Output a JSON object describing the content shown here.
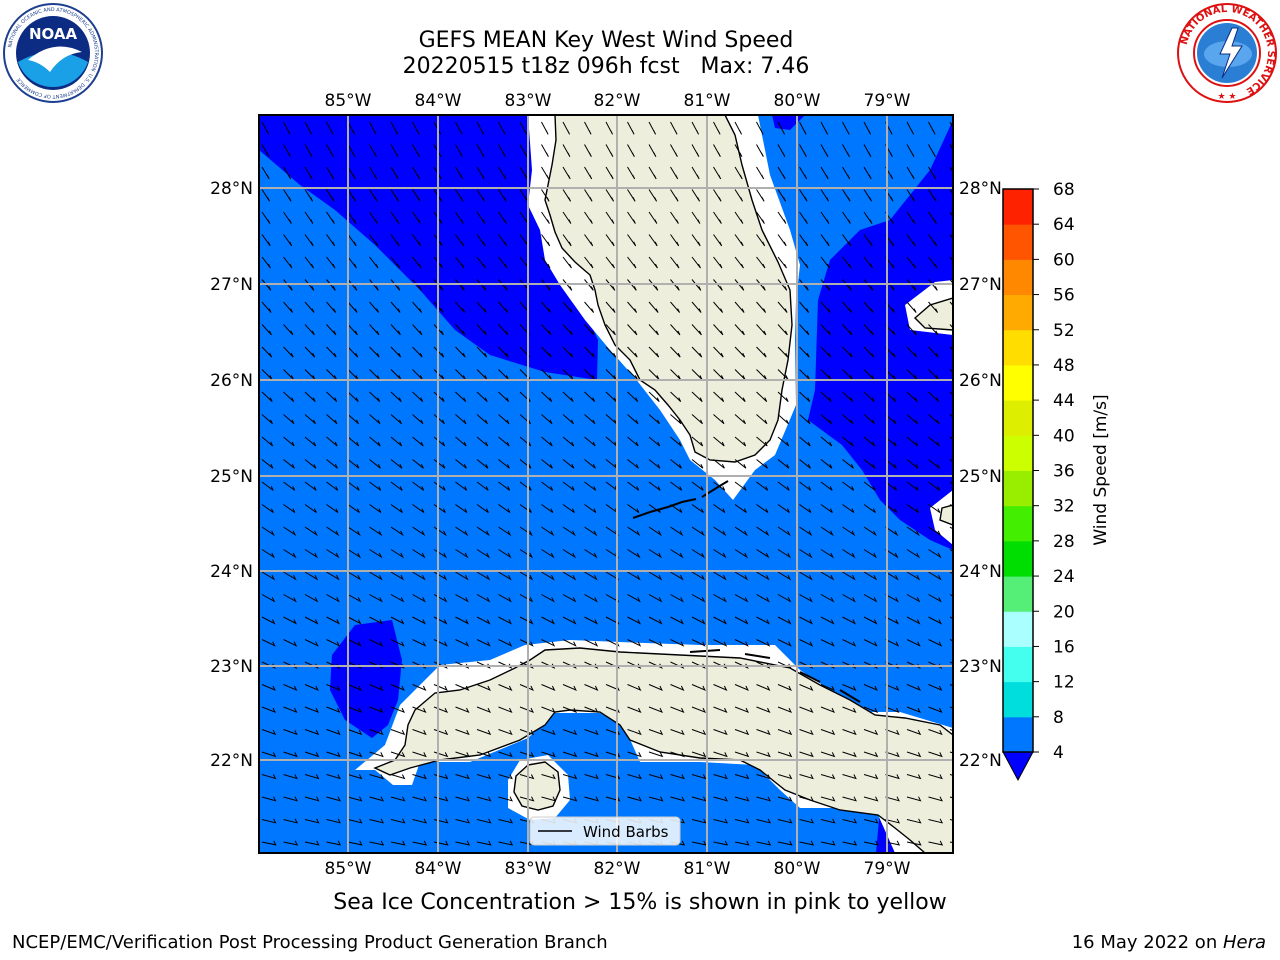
{
  "header": {
    "title_line1": "GEFS MEAN Key West Wind Speed",
    "title_line2": "20220515 t18z 096h fcst   Max: 7.46"
  },
  "logos": {
    "left": "NOAA",
    "left_ring_text": "NATIONAL OCEANIC AND ATMOSPHERIC ADMINISTRATION",
    "left_ring_bottom": "U.S. DEPARTMENT OF COMMERCE",
    "right_ring_text": "NATIONAL WEATHER SERVICE"
  },
  "map": {
    "lon_labels": [
      "85°W",
      "84°W",
      "83°W",
      "82°W",
      "81°W",
      "80°W",
      "79°W"
    ],
    "lat_labels": [
      "28°N",
      "27°N",
      "26°N",
      "25°N",
      "24°N",
      "23°N",
      "22°N"
    ],
    "legend_label": "Wind Barbs",
    "colors": {
      "water_4_8": "#0077ff",
      "water_below_4": "#0000ff",
      "land": "#eeeedd",
      "grid": "#b0b0b0"
    }
  },
  "colorbar": {
    "label": "Wind Speed [m/s]",
    "ticks": [
      "4",
      "8",
      "12",
      "16",
      "20",
      "24",
      "28",
      "32",
      "36",
      "40",
      "44",
      "48",
      "52",
      "56",
      "60",
      "64",
      "68"
    ],
    "bands": [
      "#0077ff",
      "#00dddd",
      "#44ffee",
      "#aaffff",
      "#55ee77",
      "#00dd00",
      "#44ee00",
      "#99ee00",
      "#ccff00",
      "#ddee00",
      "#ffff00",
      "#ffdd00",
      "#ffaa00",
      "#ff8800",
      "#ff5500",
      "#ff2200"
    ],
    "under_color": "#0000ff"
  },
  "footer": {
    "note": "Sea Ice Concentration > 15% is shown in pink to yellow",
    "credit": "NCEP/EMC/Verification Post Processing Product Generation Branch",
    "date_prefix": "16 May 2022 on ",
    "date_host": "Hera"
  }
}
